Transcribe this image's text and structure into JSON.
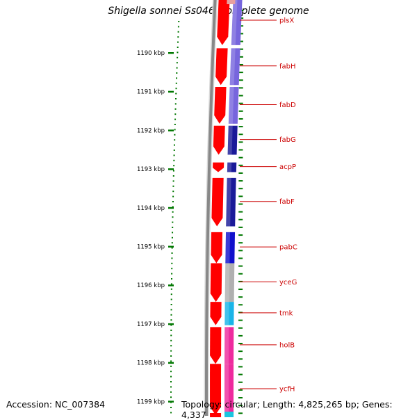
{
  "title": "Shigella sonnei Ss046, complete genome",
  "accession": "Accession: NC_007384",
  "topology": "Topology: circular; Length: 4,825,265 bp; Genes: 4,337",
  "colors": {
    "cds": "#ff0000",
    "axis_ticks": "#007700",
    "label": "#cc0000",
    "backbone": "#888888"
  },
  "ruler": {
    "unit": "kbp",
    "ticks": [
      {
        "kbp": 1190,
        "label": "1190 kbp"
      },
      {
        "kbp": 1191,
        "label": "1191 kbp"
      },
      {
        "kbp": 1192,
        "label": "1192 kbp"
      },
      {
        "kbp": 1193,
        "label": "1193 kbp"
      },
      {
        "kbp": 1194,
        "label": "1194 kbp"
      },
      {
        "kbp": 1195,
        "label": "1195 kbp"
      },
      {
        "kbp": 1196,
        "label": "1196 kbp"
      },
      {
        "kbp": 1197,
        "label": "1197 kbp"
      },
      {
        "kbp": 1198,
        "label": "1198 kbp"
      },
      {
        "kbp": 1199,
        "label": "1199 kbp"
      }
    ]
  },
  "genes": [
    {
      "name": "plsX",
      "start_kbp": 1188.55,
      "end_kbp": 1189.8,
      "color": "#7766dd"
    },
    {
      "name": "fabH",
      "start_kbp": 1189.88,
      "end_kbp": 1190.83,
      "color": "#7766dd"
    },
    {
      "name": "fabD",
      "start_kbp": 1190.88,
      "end_kbp": 1191.83,
      "color": "#7766dd"
    },
    {
      "name": "fabG",
      "start_kbp": 1191.88,
      "end_kbp": 1192.63,
      "color": "#1a1a99"
    },
    {
      "name": "acpP",
      "start_kbp": 1192.83,
      "end_kbp": 1193.08,
      "color": "#1a1a99"
    },
    {
      "name": "fabF",
      "start_kbp": 1193.23,
      "end_kbp": 1194.48,
      "color": "#1a1a99"
    },
    {
      "name": "pabC",
      "start_kbp": 1194.63,
      "end_kbp": 1195.43,
      "color": "#1111cc"
    },
    {
      "name": "yceG",
      "start_kbp": 1195.43,
      "end_kbp": 1196.43,
      "color": "#b0b0b0"
    },
    {
      "name": "tmk",
      "start_kbp": 1196.43,
      "end_kbp": 1197.03,
      "color": "#19b5e8"
    },
    {
      "name": "holB",
      "start_kbp": 1197.08,
      "end_kbp": 1198.03,
      "color": "#ee2b9e"
    },
    {
      "name": "ycfH",
      "start_kbp": 1198.03,
      "end_kbp": 1199.35,
      "color": "#ee2b9e"
    }
  ]
}
